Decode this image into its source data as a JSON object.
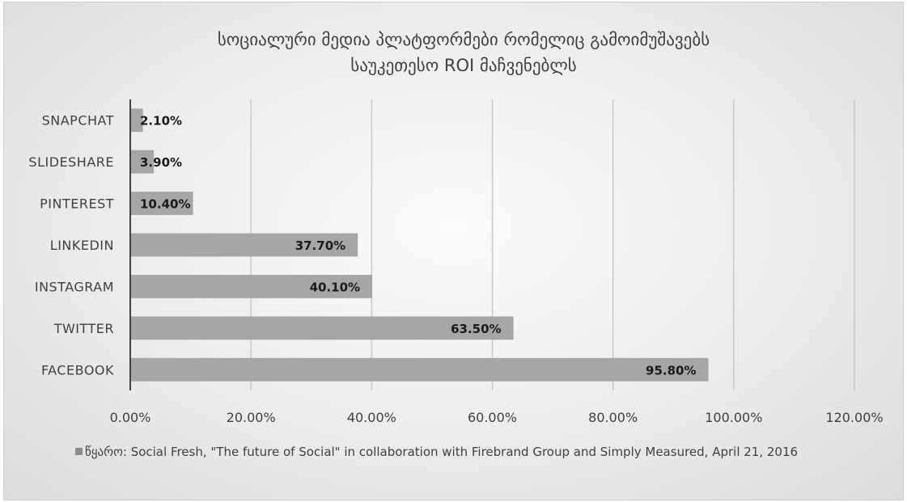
{
  "chart_data": {
    "type": "bar",
    "orientation": "horizontal",
    "title": "სოციალური მედია პლატფორმები რომელიც გამოიმუშავებს საუკეთესო ROI მაჩვენებლს",
    "title_lines": [
      "სოციალური მედია პლატფორმები რომელიც გამოიმუშავებს",
      "საუკეთესო ROI მაჩვენებლს"
    ],
    "categories": [
      "SNAPCHAT",
      "SLIDESHARE",
      "PINTEREST",
      "LINKEDIN",
      "INSTAGRAM",
      "TWITTER",
      "FACEBOOK"
    ],
    "values": [
      2.1,
      3.9,
      10.4,
      37.7,
      40.1,
      63.5,
      95.8
    ],
    "data_labels": [
      "2.10%",
      "3.90%",
      "10.40%",
      "37.70%",
      "40.10%",
      "63.50%",
      "95.80%"
    ],
    "xlim": [
      0,
      120
    ],
    "x_ticks": [
      0,
      20,
      40,
      60,
      80,
      100,
      120
    ],
    "x_tick_labels": [
      "0.00%",
      "20.00%",
      "40.00%",
      "60.00%",
      "80.00%",
      "100.00%",
      "120.00%"
    ],
    "grid": true,
    "legend_position": "bottom",
    "legend": "წყარო: Social Fresh, \"The future of Social\" in collaboration with Firebrand Group and Simply Measured, April 21, 2016",
    "colors": {
      "bar": "#a6a6a6",
      "grid": "#c8c8c8",
      "axis": "#404040"
    }
  }
}
